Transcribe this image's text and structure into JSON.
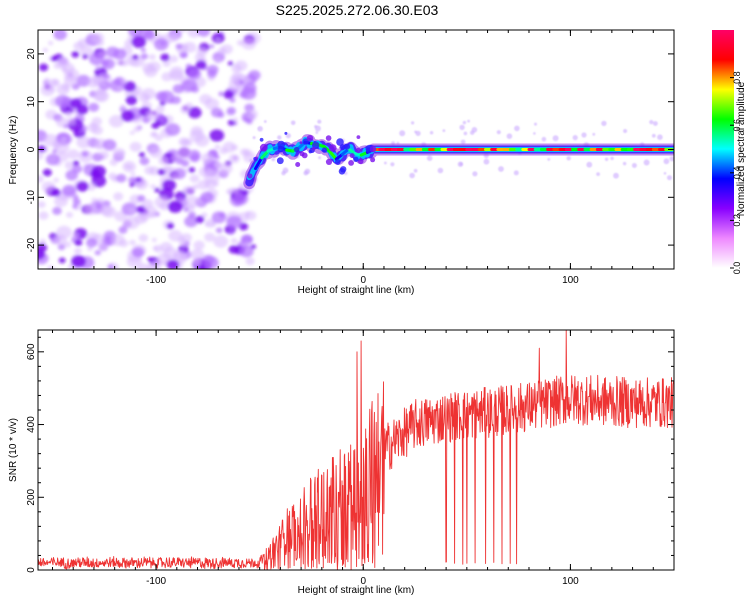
{
  "title": "S225.2025.272.06.30.E03",
  "chart_data": [
    {
      "type": "heatmap",
      "xlabel": "Height of straight line (km)",
      "ylabel": "Frequency (Hz)",
      "xlim": [
        -157,
        150
      ],
      "ylim": [
        -25,
        25
      ],
      "x_ticks": [
        -100,
        0,
        100
      ],
      "y_ticks": [
        -20,
        -10,
        0,
        10,
        20
      ],
      "colorbar": {
        "label": "Normalized spectral amplitude",
        "range": [
          0,
          1
        ],
        "ticks": [
          "0.0",
          "0.2",
          "0.4",
          "0.6",
          "0.8"
        ],
        "colors": [
          "#ffffff",
          "#ee88ff",
          "#8800ff",
          "#0000ff",
          "#00ffff",
          "#00ff00",
          "#ffff00",
          "#ff0000",
          "#ff0066"
        ]
      },
      "noise_region_x": [
        -157,
        -55
      ],
      "ridge": [
        {
          "x": -55,
          "y": -6.5
        },
        {
          "x": -52,
          "y": -4
        },
        {
          "x": -48,
          "y": -1
        },
        {
          "x": -45,
          "y": 0
        },
        {
          "x": -40,
          "y": 0.5
        },
        {
          "x": -35,
          "y": -0.5
        },
        {
          "x": -32,
          "y": 0
        },
        {
          "x": -28,
          "y": 1.5
        },
        {
          "x": -22,
          "y": 1
        },
        {
          "x": -18,
          "y": 0.5
        },
        {
          "x": -13,
          "y": -2
        },
        {
          "x": -10,
          "y": -1
        },
        {
          "x": -6,
          "y": 0.5
        },
        {
          "x": -3,
          "y": -1.5
        },
        {
          "x": 0,
          "y": -1
        },
        {
          "x": 5,
          "y": 0
        },
        {
          "x": 10,
          "y": 0
        },
        {
          "x": 40,
          "y": 0
        },
        {
          "x": 90,
          "y": 0
        },
        {
          "x": 150,
          "y": 0
        }
      ]
    },
    {
      "type": "line",
      "xlabel": "Height of straight line (km)",
      "ylabel": "SNR (10 * v/v)",
      "xlim": [
        -157,
        150
      ],
      "ylim": [
        0,
        660
      ],
      "x_ticks": [
        -100,
        0,
        100
      ],
      "y_ticks": [
        0,
        200,
        400,
        600
      ],
      "color": "#ee3333",
      "trend": [
        {
          "x": -157,
          "y": 20
        },
        {
          "x": -50,
          "y": 20
        },
        {
          "x": -43,
          "y": 60
        },
        {
          "x": -35,
          "y": 120
        },
        {
          "x": -25,
          "y": 160
        },
        {
          "x": -10,
          "y": 220
        },
        {
          "x": 0,
          "y": 270
        },
        {
          "x": 10,
          "y": 330
        },
        {
          "x": 25,
          "y": 400
        },
        {
          "x": 40,
          "y": 420
        },
        {
          "x": 70,
          "y": 440
        },
        {
          "x": 100,
          "y": 470
        },
        {
          "x": 130,
          "y": 460
        },
        {
          "x": 150,
          "y": 460
        }
      ],
      "dropouts": [
        {
          "x": 40,
          "y": 18
        },
        {
          "x": 44,
          "y": 18
        },
        {
          "x": 48,
          "y": 20
        },
        {
          "x": 50,
          "y": 15
        },
        {
          "x": 54,
          "y": 18
        },
        {
          "x": 59,
          "y": 20
        },
        {
          "x": 63,
          "y": 18
        },
        {
          "x": 67,
          "y": 20
        },
        {
          "x": 71,
          "y": 18
        },
        {
          "x": 74,
          "y": 16
        }
      ],
      "peaks": [
        {
          "x": -1,
          "y": 630
        },
        {
          "x": -3,
          "y": 600
        },
        {
          "x": 98,
          "y": 660
        },
        {
          "x": 85,
          "y": 610
        }
      ]
    }
  ]
}
